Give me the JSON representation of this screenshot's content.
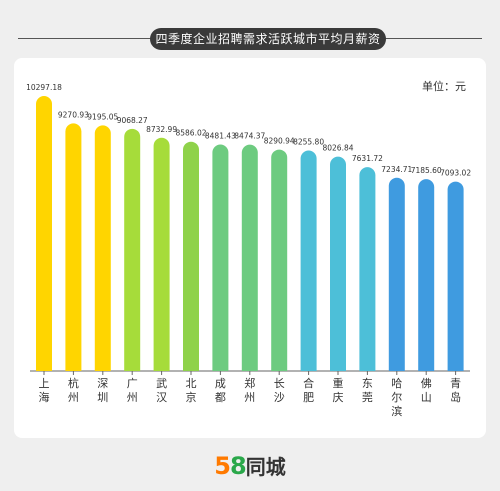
{
  "title": "四季度企业招聘需求活跃城市平均月薪资",
  "unit_label": "单位：元",
  "logo": {
    "num_5": "5",
    "num_8": "8",
    "text": "同城"
  },
  "chart_data": {
    "type": "bar",
    "categories": [
      "上海",
      "杭州",
      "深圳",
      "广州",
      "武汉",
      "北京",
      "成都",
      "郑州",
      "长沙",
      "合肥",
      "重庆",
      "东莞",
      "哈尔滨",
      "佛山",
      "青岛"
    ],
    "values": [
      10297.18,
      9270.93,
      9195.05,
      9068.27,
      8732.99,
      8586.02,
      8481.43,
      8474.37,
      8290.94,
      8255.8,
      8026.84,
      7631.72,
      7234.71,
      7185.6,
      7093.02
    ],
    "value_labels": [
      "10297.18",
      "9270.93",
      "9195.05",
      "9068.27",
      "8732.99",
      "8586.02",
      "8481.43",
      "8474.37",
      "8290.94",
      "8255.80",
      "8026.84",
      "7631.72",
      "7234.71",
      "7185.60",
      "7093.02"
    ],
    "colors": [
      "#ffd500",
      "#ffd500",
      "#ffd500",
      "#a6dc3a",
      "#a6dc3a",
      "#8fd24a",
      "#6dcb80",
      "#6dcb80",
      "#6dcb80",
      "#4dbfd8",
      "#4dbfd8",
      "#4dbfd8",
      "#3f9be0",
      "#3f9be0",
      "#3f9be0"
    ],
    "ylim": [
      0,
      10297.18
    ],
    "grid": false,
    "legend": "none"
  }
}
